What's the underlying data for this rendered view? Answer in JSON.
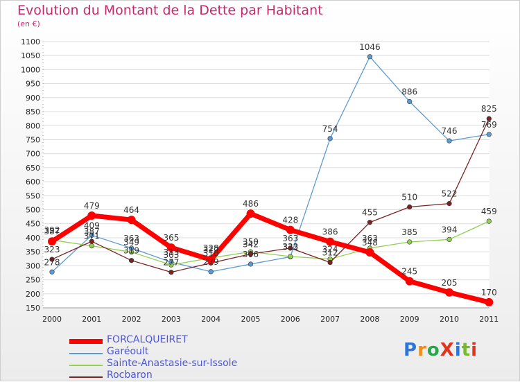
{
  "chart_data": {
    "type": "line",
    "title": "Evolution du Montant de la Dette par Habitant",
    "subtitle": "(en €)",
    "x": [
      "2000",
      "2001",
      "2002",
      "2003",
      "2004",
      "2005",
      "2006",
      "2007",
      "2008",
      "2009",
      "2010",
      "2011"
    ],
    "yticks": [
      150,
      200,
      250,
      300,
      350,
      400,
      450,
      500,
      550,
      600,
      650,
      700,
      750,
      800,
      850,
      900,
      950,
      1000,
      1050,
      1100
    ],
    "ylim": [
      150,
      1100
    ],
    "series": [
      {
        "name": "FORCALQUEIRET",
        "color": "#ff0000",
        "values": [
          387,
          479,
          464,
          365,
          322,
          486,
          428,
          386,
          348,
          245,
          205,
          170
        ]
      },
      {
        "name": "Garéoult",
        "color": "#5b9bd5",
        "values": [
          278,
          409,
          363,
          313,
          279,
          306,
          332,
          754,
          1046,
          886,
          746,
          769
        ]
      },
      {
        "name": "Sainte-Anastasie-sur-Issole",
        "color": "#92d050",
        "values": [
          392,
          371,
          349,
          303,
          328,
          350,
          333,
          324,
          363,
          385,
          394,
          459
        ]
      },
      {
        "name": "Rocbaron",
        "color": "#7b2222",
        "values": [
          323,
          387,
          319,
          277,
          310,
          342,
          363,
          312,
          455,
          510,
          522,
          825
        ]
      }
    ]
  },
  "logo": {
    "text": "ProXiti"
  }
}
